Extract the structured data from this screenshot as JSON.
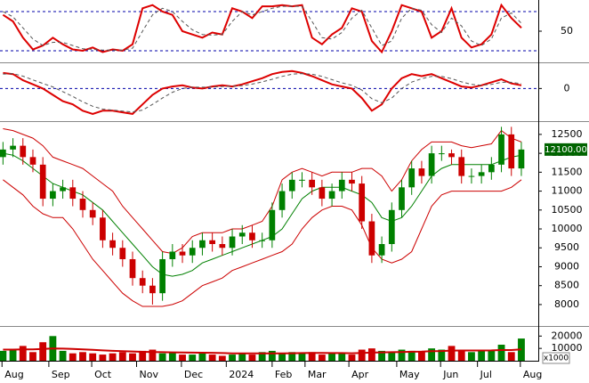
{
  "chart_data": [
    {
      "type": "line",
      "xlim": [
        -0.3,
        53.7
      ],
      "ylim": [
        5,
        95
      ],
      "yticks": [
        50
      ],
      "levels": [
        80,
        20
      ],
      "level_color": "#0000aa",
      "series": [
        {
          "color": "#dd0000",
          "values": [
            75,
            65,
            40,
            22,
            28,
            40,
            30,
            22,
            20,
            25,
            18,
            22,
            20,
            30,
            85,
            90,
            80,
            75,
            50,
            45,
            40,
            48,
            45,
            85,
            80,
            70,
            88,
            88,
            90,
            88,
            90,
            40,
            30,
            45,
            55,
            85,
            80,
            35,
            18,
            50,
            90,
            85,
            80,
            40,
            50,
            85,
            40,
            25,
            30,
            45,
            90,
            70,
            55
          ]
        },
        {
          "color": "#555555",
          "dash": true,
          "values": [
            80,
            72,
            55,
            38,
            28,
            33,
            33,
            28,
            23,
            22,
            21,
            21,
            21,
            24,
            50,
            75,
            85,
            80,
            65,
            52,
            45,
            44,
            45,
            65,
            80,
            75,
            80,
            85,
            88,
            88,
            88,
            65,
            40,
            38,
            48,
            70,
            82,
            55,
            28,
            35,
            70,
            85,
            82,
            60,
            48,
            70,
            58,
            35,
            28,
            38,
            70,
            78,
            62
          ]
        }
      ]
    },
    {
      "type": "line",
      "xlim": [
        -0.3,
        53.7
      ],
      "ylim": [
        -1000,
        740
      ],
      "yticks": [
        0
      ],
      "levels": [
        0
      ],
      "level_color": "#0000aa",
      "series": [
        {
          "color": "#dd0000",
          "values": [
            490,
            455,
            260,
            130,
            0,
            -200,
            -400,
            -500,
            -700,
            -800,
            -700,
            -700,
            -750,
            -800,
            -500,
            -200,
            0,
            65,
            100,
            30,
            0,
            65,
            100,
            65,
            130,
            230,
            325,
            455,
            520,
            550,
            490,
            390,
            260,
            130,
            65,
            0,
            -300,
            -700,
            -500,
            0,
            325,
            455,
            390,
            455,
            325,
            195,
            65,
            30,
            100,
            195,
            290,
            160,
            100
          ]
        },
        {
          "color": "#555555",
          "dash": true,
          "values": [
            455,
            470,
            390,
            270,
            160,
            50,
            -100,
            -250,
            -420,
            -560,
            -650,
            -680,
            -710,
            -740,
            -680,
            -500,
            -300,
            -120,
            0,
            40,
            40,
            45,
            65,
            70,
            90,
            140,
            210,
            290,
            380,
            450,
            470,
            450,
            380,
            280,
            180,
            100,
            -50,
            -320,
            -450,
            -300,
            0,
            200,
            310,
            380,
            380,
            310,
            210,
            130,
            100,
            130,
            195,
            195,
            150
          ]
        }
      ]
    },
    {
      "type": "candlestick",
      "xlim": [
        -0.3,
        53.7
      ],
      "ylim": [
        7480,
        12780
      ],
      "yticks": [
        8000,
        8500,
        9000,
        9500,
        10000,
        10500,
        11000,
        11500,
        12000,
        12500
      ],
      "up_color": "#008000",
      "down_color": "#cc0000",
      "open": [
        11900,
        12100,
        12200,
        11900,
        11700,
        10800,
        11000,
        11100,
        10800,
        10500,
        10300,
        9700,
        9500,
        9200,
        8700,
        8500,
        8300,
        9200,
        9400,
        9300,
        9500,
        9700,
        9600,
        9500,
        9800,
        9900,
        9700,
        9700,
        10500,
        11000,
        11300,
        11300,
        11100,
        10800,
        11000,
        11300,
        11200,
        10200,
        9300,
        9600,
        10500,
        11100,
        11600,
        11400,
        12000,
        12000,
        11900,
        11400,
        11400,
        11500,
        11700,
        12500,
        11600
      ],
      "high": [
        12300,
        12400,
        12400,
        12100,
        11900,
        11200,
        11300,
        11300,
        11000,
        10700,
        10500,
        9900,
        9700,
        9400,
        8900,
        8700,
        9400,
        9600,
        9600,
        9700,
        9900,
        9900,
        9800,
        10000,
        10100,
        10100,
        9900,
        10700,
        11200,
        11500,
        11500,
        11500,
        11300,
        11200,
        11500,
        11500,
        11400,
        10400,
        9800,
        10700,
        11300,
        11800,
        11800,
        12200,
        12200,
        12100,
        12100,
        11600,
        11700,
        11900,
        12700,
        12700,
        12300
      ],
      "low": [
        11700,
        11900,
        11700,
        11500,
        10600,
        10600,
        10800,
        10600,
        10300,
        10100,
        9500,
        9300,
        9000,
        8500,
        8300,
        8000,
        8100,
        9000,
        9100,
        9100,
        9300,
        9400,
        9300,
        9300,
        9600,
        9500,
        9500,
        9500,
        10300,
        10800,
        11100,
        10900,
        10600,
        10600,
        10800,
        11000,
        10000,
        9100,
        9100,
        9400,
        10300,
        10900,
        11200,
        11200,
        11800,
        11700,
        11200,
        11200,
        11200,
        11300,
        11500,
        11400,
        11400
      ],
      "close": [
        12100,
        12200,
        11900,
        11700,
        10800,
        11000,
        11100,
        10800,
        10500,
        10300,
        9700,
        9500,
        9200,
        8700,
        8500,
        8300,
        9200,
        9400,
        9300,
        9500,
        9700,
        9600,
        9500,
        9800,
        9900,
        9700,
        9700,
        10500,
        11000,
        11300,
        11300,
        11100,
        10800,
        11000,
        11300,
        11200,
        10200,
        9300,
        9600,
        10500,
        11100,
        11600,
        11400,
        12000,
        12000,
        11900,
        11400,
        11400,
        11500,
        11700,
        12500,
        11600,
        12100
      ],
      "overlays": [
        {
          "color": "#cc0000",
          "values": [
            12650,
            12600,
            12500,
            12400,
            12200,
            11900,
            11800,
            11700,
            11600,
            11400,
            11200,
            11000,
            10600,
            10300,
            10000,
            9700,
            9400,
            9350,
            9500,
            9800,
            9900,
            9900,
            9900,
            10000,
            10000,
            10100,
            10200,
            10600,
            11300,
            11500,
            11600,
            11500,
            11400,
            11500,
            11500,
            11500,
            11600,
            11600,
            11400,
            11000,
            11300,
            11800,
            12100,
            12300,
            12300,
            12300,
            12200,
            12150,
            12200,
            12250,
            12600,
            12400,
            12300
          ]
        },
        {
          "color": "#cc0000",
          "values": [
            11300,
            11100,
            10900,
            10600,
            10400,
            10300,
            10300,
            10000,
            9600,
            9200,
            8900,
            8600,
            8300,
            8100,
            7950,
            7950,
            7950,
            8000,
            8100,
            8300,
            8500,
            8600,
            8700,
            8900,
            9000,
            9100,
            9200,
            9300,
            9400,
            9600,
            10000,
            10300,
            10500,
            10600,
            10600,
            10500,
            10100,
            9500,
            9200,
            9100,
            9200,
            9400,
            10000,
            10600,
            10900,
            11000,
            11000,
            11000,
            11000,
            11000,
            11000,
            11100,
            11300
          ]
        },
        {
          "color": "#008000",
          "values": [
            12000,
            11950,
            11800,
            11600,
            11400,
            11200,
            11100,
            11000,
            10900,
            10700,
            10500,
            10200,
            9900,
            9600,
            9300,
            9000,
            8800,
            8750,
            8800,
            8900,
            9100,
            9200,
            9300,
            9400,
            9500,
            9600,
            9700,
            9800,
            10000,
            10400,
            10800,
            11000,
            11100,
            11100,
            11100,
            11000,
            10900,
            10700,
            10300,
            10200,
            10300,
            10600,
            11000,
            11400,
            11600,
            11700,
            11700,
            11700,
            11700,
            11700,
            11800,
            11900,
            11950
          ]
        }
      ],
      "last_value": {
        "value": 12100,
        "label": "12100.00"
      },
      "last_value_color": "#006400"
    },
    {
      "type": "bar",
      "xlim": [
        -0.3,
        53.7
      ],
      "ylim": [
        0,
        26000
      ],
      "yticks": [
        10000,
        20000
      ],
      "unit_label": "x1000",
      "values": [
        8000,
        9000,
        12000,
        7000,
        15000,
        20000,
        8000,
        6000,
        7000,
        6000,
        5000,
        6000,
        7000,
        6000,
        8000,
        9000,
        6000,
        7000,
        5000,
        5000,
        6000,
        5000,
        4000,
        5000,
        6000,
        5000,
        7000,
        8000,
        6000,
        7000,
        6000,
        7000,
        5000,
        6000,
        6000,
        5000,
        9000,
        10000,
        8000,
        7000,
        9000,
        8000,
        7000,
        10000,
        9000,
        12000,
        8000,
        7000,
        8000,
        9000,
        13000,
        7000,
        18000
      ],
      "ma": {
        "color": "#cc0000",
        "values": [
          9000,
          9000,
          9200,
          9200,
          9500,
          10000,
          9800,
          9500,
          9200,
          8800,
          8400,
          8000,
          7800,
          7500,
          7200,
          7000,
          6900,
          6800,
          6700,
          6600,
          6500,
          6400,
          6200,
          6000,
          6000,
          5900,
          5900,
          6000,
          6000,
          6100,
          6200,
          6300,
          6300,
          6200,
          6200,
          6100,
          6300,
          6600,
          6800,
          6900,
          7100,
          7300,
          7400,
          7700,
          7900,
          8200,
          8300,
          8300,
          8300,
          8400,
          8700,
          8700,
          9200
        ]
      },
      "xticks": [
        {
          "value": -0.1,
          "label": "Aug"
        },
        {
          "value": 4.6,
          "label": "Sep"
        },
        {
          "value": 8.9,
          "label": "Oct"
        },
        {
          "value": 13.4,
          "label": "Nov"
        },
        {
          "value": 17.9,
          "label": "Dec"
        },
        {
          "value": 22.4,
          "label": "2024"
        },
        {
          "value": 27.0,
          "label": "Feb"
        },
        {
          "value": 30.3,
          "label": "Mar"
        },
        {
          "value": 34.7,
          "label": "Apr"
        },
        {
          "value": 39.5,
          "label": "May"
        },
        {
          "value": 43.9,
          "label": "Jun"
        },
        {
          "value": 47.6,
          "label": "Jul"
        },
        {
          "value": 51.9,
          "label": "Aug"
        }
      ]
    }
  ]
}
